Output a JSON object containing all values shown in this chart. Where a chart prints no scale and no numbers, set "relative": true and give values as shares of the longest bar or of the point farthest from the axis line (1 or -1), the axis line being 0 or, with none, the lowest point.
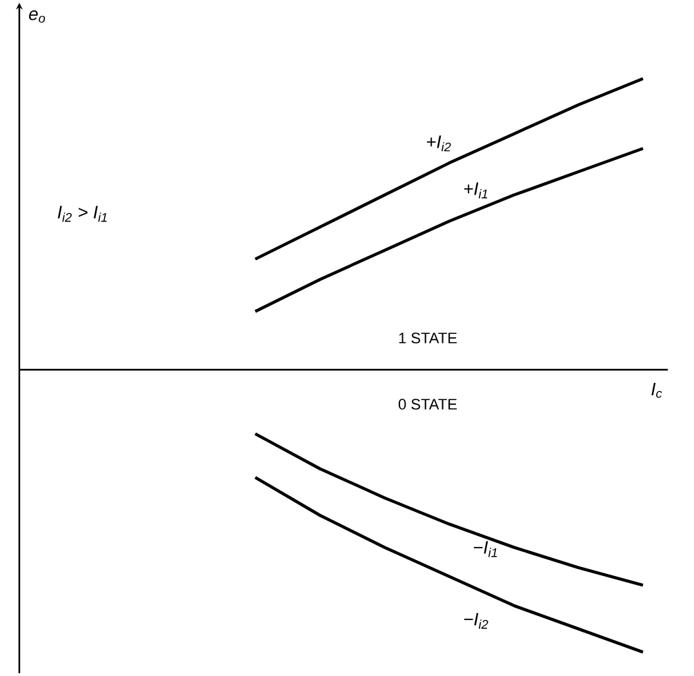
{
  "chart_data": {
    "type": "line",
    "relative": true,
    "xlabel": "I$_{c}$",
    "categories": [
      null,
      null,
      null,
      null,
      null,
      null,
      null
    ],
    "series": [
      {
        "name": "+I$_{i2}$",
        "color": "#000000",
        "values": [
          0.38,
          0.49,
          0.6,
          0.71,
          0.81,
          0.91,
          1.0
        ]
      },
      {
        "name": "+I$_{i1}$",
        "color": "#000000",
        "values": [
          0.2,
          0.31,
          0.41,
          0.51,
          0.6,
          0.68,
          0.76
        ]
      },
      {
        "name": "−I$_{i1}$",
        "color": "#000000",
        "values": [
          -0.22,
          -0.34,
          -0.44,
          -0.53,
          -0.61,
          -0.68,
          -0.74
        ]
      },
      {
        "name": "−I$_{i2}$",
        "color": "#000000",
        "values": [
          -0.37,
          -0.5,
          -0.61,
          -0.71,
          -0.81,
          -0.89,
          -0.97
        ]
      }
    ],
    "annotations": [
      "e$_{o}$",
      "I$_{i2}$ > I$_{i1}$",
      "1 STATE",
      "0 STATE"
    ],
    "marker": "none",
    "line_style": "solid"
  }
}
